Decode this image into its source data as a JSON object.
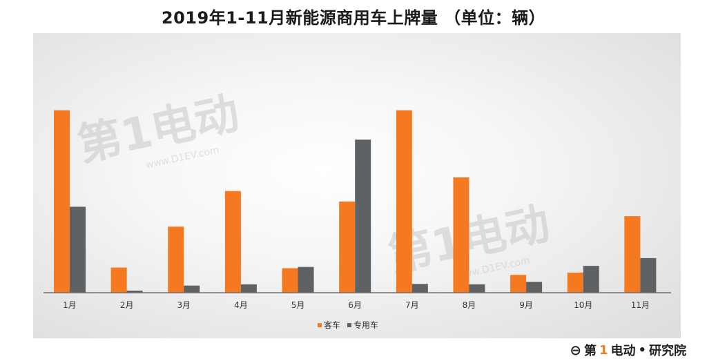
{
  "chart_data": {
    "type": "bar",
    "title": "2019年1-11月新能源商用车上牌量 （单位：辆）",
    "categories": [
      "1月",
      "2月",
      "3月",
      "4月",
      "5月",
      "6月",
      "7月",
      "8月",
      "9月",
      "10月",
      "11月"
    ],
    "series": [
      {
        "name": "客车",
        "color": "#f47920",
        "values": [
          8700,
          1200,
          3150,
          4850,
          1170,
          4350,
          8700,
          5500,
          850,
          960,
          3650
        ]
      },
      {
        "name": "专用车",
        "color": "#5f6264",
        "values": [
          4100,
          100,
          340,
          400,
          1230,
          7300,
          420,
          400,
          520,
          1280,
          1650
        ]
      }
    ],
    "ylim": [
      0,
      10700
    ],
    "grid": false,
    "legend": "bottom-center",
    "xlabel": "",
    "ylabel": ""
  },
  "watermark": {
    "brand": "第1电动",
    "url": "www.D1EV.com"
  },
  "footer": {
    "brand_prefix": "第",
    "brand_accent": "1",
    "brand_suffix": "电动",
    "dot": "•",
    "division": "研究院"
  },
  "colors": {
    "axis": "#6e6e6e",
    "background": "#ffffff"
  }
}
